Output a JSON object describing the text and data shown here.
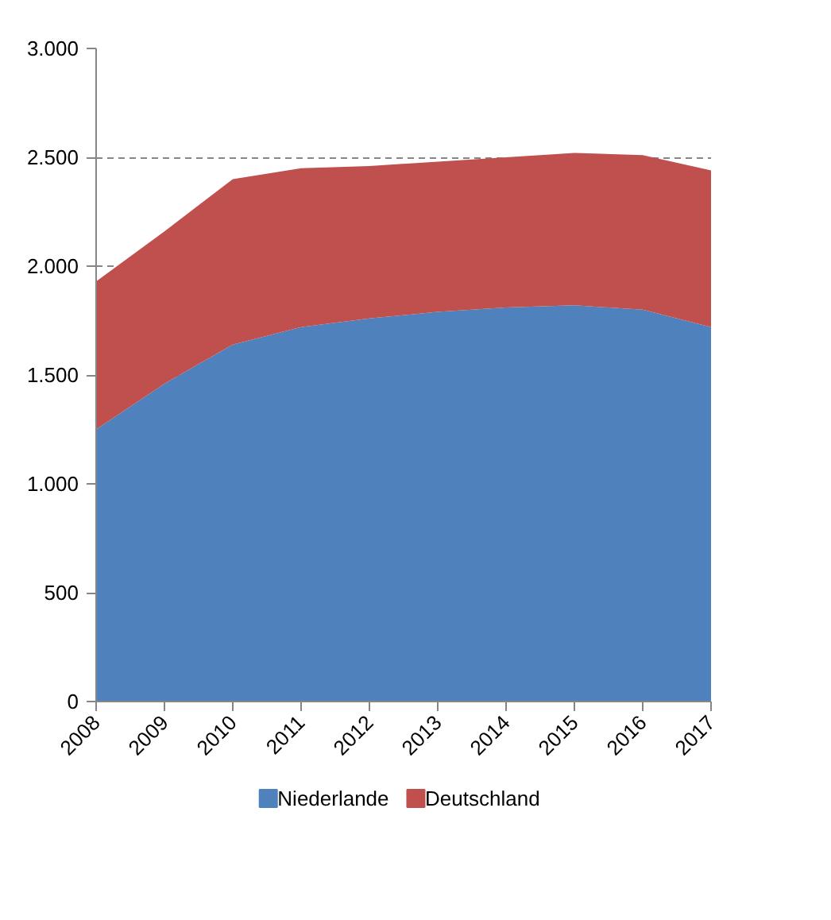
{
  "chart_data": {
    "type": "area",
    "stacked": true,
    "categories": [
      "2008",
      "2009",
      "2010",
      "2011",
      "2012",
      "2013",
      "2014",
      "2015",
      "2016",
      "2017"
    ],
    "series": [
      {
        "name": "Niederlande",
        "color": "#4f81bd",
        "values": [
          1250,
          1460,
          1640,
          1720,
          1760,
          1790,
          1810,
          1820,
          1800,
          1720
        ]
      },
      {
        "name": "Deutschland",
        "color": "#c0504d",
        "values": [
          680,
          700,
          760,
          730,
          700,
          690,
          690,
          700,
          710,
          720
        ]
      }
    ],
    "ylim": [
      0,
      3000
    ],
    "yticks": [
      0,
      500,
      {
        "value": 1000,
        "label": "1.000"
      },
      {
        "value": 1500,
        "label": "1.500"
      },
      {
        "value": 2000,
        "label": "2.000"
      },
      {
        "value": 2500,
        "label": "2.500"
      },
      {
        "value": 3000,
        "label": "3.000"
      }
    ],
    "grid": "y",
    "legend": "bottom"
  }
}
